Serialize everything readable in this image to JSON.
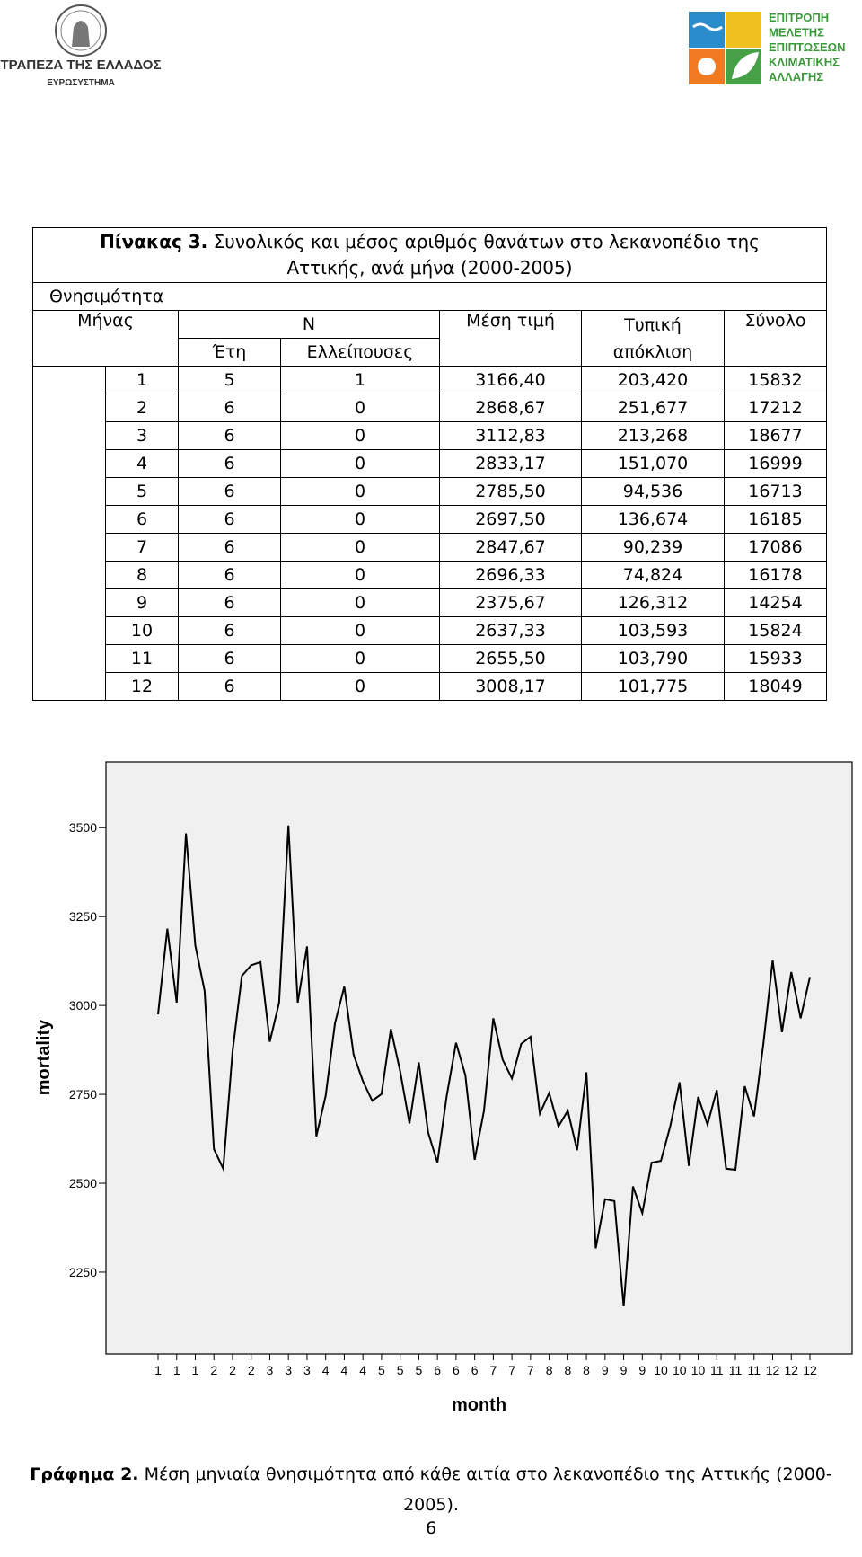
{
  "header": {
    "left_logo": {
      "name": "ΤΡΑΠΕΖΑ ΤΗΣ ΕΛΛΑΔΟΣ",
      "subtitle": "ΕΥΡΩΣΥΣΤΗΜΑ"
    },
    "right_logo": {
      "lines": [
        "ΕΠΙΤΡΟΠΗ",
        "ΜΕΛΕΤΗΣ",
        "ΕΠΙΠΤΩΣΕΩΝ",
        "ΚΛΙΜΑΤΙΚΗΣ",
        "ΑΛΛΑΓΗΣ"
      ]
    }
  },
  "table": {
    "title_label": "Πίνακας 3.",
    "title_text": "Συνολικός και μέσος αριθμός θανάτων στο λεκανοπέδιο της Αττικής, ανά μήνα (2000-2005)",
    "group": "Θνησιμότητα",
    "headers": {
      "month": "Μήνας",
      "n": "N",
      "mean": "Μέση τιμή",
      "sd": "Τυπική απόκλιση",
      "total": "Σύνολο",
      "years": "Έτη",
      "missing": "Ελλείπουσες"
    },
    "rows": [
      [
        "1",
        "5",
        "1",
        "3166,40",
        "203,420",
        "15832"
      ],
      [
        "2",
        "6",
        "0",
        "2868,67",
        "251,677",
        "17212"
      ],
      [
        "3",
        "6",
        "0",
        "3112,83",
        "213,268",
        "18677"
      ],
      [
        "4",
        "6",
        "0",
        "2833,17",
        "151,070",
        "16999"
      ],
      [
        "5",
        "6",
        "0",
        "2785,50",
        "94,536",
        "16713"
      ],
      [
        "6",
        "6",
        "0",
        "2697,50",
        "136,674",
        "16185"
      ],
      [
        "7",
        "6",
        "0",
        "2847,67",
        "90,239",
        "17086"
      ],
      [
        "8",
        "6",
        "0",
        "2696,33",
        "74,824",
        "16178"
      ],
      [
        "9",
        "6",
        "0",
        "2375,67",
        "126,312",
        "14254"
      ],
      [
        "10",
        "6",
        "0",
        "2637,33",
        "103,593",
        "15824"
      ],
      [
        "11",
        "6",
        "0",
        "2655,50",
        "103,790",
        "15933"
      ],
      [
        "12",
        "6",
        "0",
        "3008,17",
        "101,775",
        "18049"
      ]
    ]
  },
  "chart_data": {
    "type": "line",
    "xlabel": "month",
    "ylabel": "mortality",
    "categories": [
      "1",
      null,
      "1",
      null,
      "1",
      null,
      "2",
      null,
      "2",
      null,
      "2",
      null,
      "3",
      null,
      "3",
      null,
      "3",
      null,
      "4",
      null,
      "4",
      null,
      "4",
      null,
      "5",
      null,
      "5",
      null,
      "5",
      null,
      "6",
      null,
      "6",
      null,
      "6",
      null,
      "7",
      null,
      "7",
      null,
      "7",
      null,
      "8",
      null,
      "8",
      null,
      "8",
      null,
      "9",
      null,
      "9",
      null,
      "9",
      null,
      "10",
      null,
      "10",
      null,
      "10",
      null,
      "11",
      null,
      "11",
      null,
      "11",
      null,
      "12",
      null,
      "12",
      null,
      "12"
    ],
    "series": [
      {
        "color": "#000000",
        "values": [
          2975,
          3216,
          3008,
          3484,
          3169,
          3041,
          2596,
          2541,
          2870,
          3083,
          3113,
          3122,
          2898,
          3008,
          3506,
          3008,
          3166,
          2632,
          2746,
          2950,
          3053,
          2862,
          2787,
          2732,
          2751,
          2934,
          2815,
          2668,
          2840,
          2643,
          2558,
          2746,
          2895,
          2804,
          2566,
          2704,
          2964,
          2848,
          2795,
          2892,
          2912,
          2696,
          2754,
          2660,
          2704,
          2593,
          2812,
          2317,
          2455,
          2450,
          2154,
          2491,
          2416,
          2558,
          2563,
          2660,
          2784,
          2549,
          2743,
          2665,
          2762,
          2541,
          2538,
          2773,
          2688,
          2892,
          3127,
          2925,
          3094,
          2964,
          3080
        ]
      }
    ],
    "ylim": [
      2020,
      3685
    ],
    "yticks": [
      2250,
      2500,
      2750,
      3000,
      3250,
      3500
    ],
    "background": "#f0f0f0"
  },
  "caption": {
    "label": "Γράφημα 2.",
    "text": "Μέση μηνιαία θνησιμότητα από κάθε αιτία στο λεκανοπέδιο της Αττικής (2000-2005)."
  },
  "page_number": "6"
}
